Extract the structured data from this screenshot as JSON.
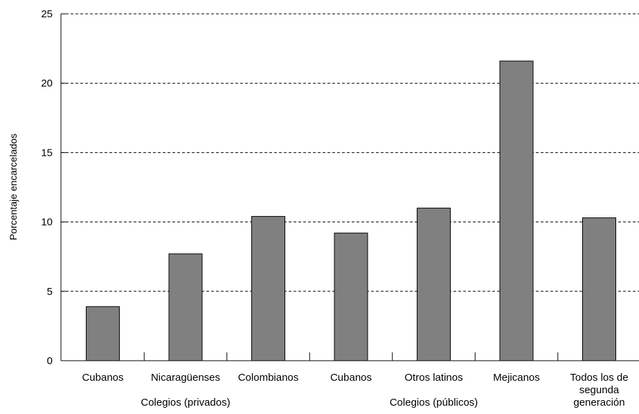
{
  "chart_data": {
    "type": "bar",
    "ylabel": "Porcentaje encarcelados",
    "ylim": [
      0,
      25
    ],
    "yticks": [
      0,
      5,
      10,
      15,
      20,
      25
    ],
    "grid": "horizontal dashed",
    "bar_color": "#808080",
    "categories": [
      "Cubanos",
      "Nicaragüenses",
      "Colombianos",
      "Cubanos",
      "Otros latinos",
      "Mejicanos",
      [
        "Todos los de",
        "segunda",
        "generación"
      ]
    ],
    "values": [
      3.9,
      7.7,
      10.4,
      9.2,
      11.0,
      21.6,
      10.3
    ],
    "groups": [
      {
        "label": "Colegios (privados)",
        "from": 0,
        "to": 2
      },
      {
        "label": "Colegios (públicos)",
        "from": 3,
        "to": 5
      }
    ]
  }
}
